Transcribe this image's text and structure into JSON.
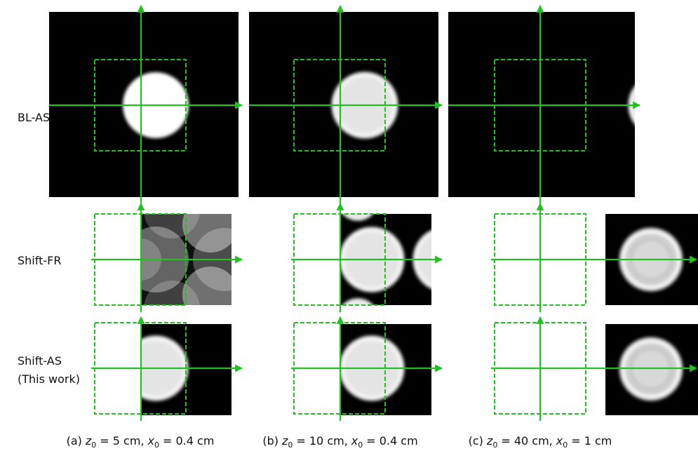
{
  "rows": [
    {
      "label": "BL-AS"
    },
    {
      "label": "Shift-FR"
    },
    {
      "label": "Shift-AS",
      "note": "(This work)"
    }
  ],
  "captions": [
    {
      "label": "(a)",
      "z": "z",
      "z_sub": "0",
      "z_value": "= 5 cm,",
      "x": "x",
      "x_sub": "0",
      "x_value": "= 0.4 cm"
    },
    {
      "label": "(b)",
      "z": "z",
      "z_sub": "0",
      "z_value": "= 10 cm,",
      "x": "x",
      "x_sub": "0",
      "x_value": "= 0.4 cm"
    },
    {
      "label": "(c)",
      "z": "z",
      "z_sub": "0",
      "z_value": "= 40 cm,",
      "x": "x",
      "x_sub": "0",
      "x_value": "= 1 cm"
    }
  ]
}
